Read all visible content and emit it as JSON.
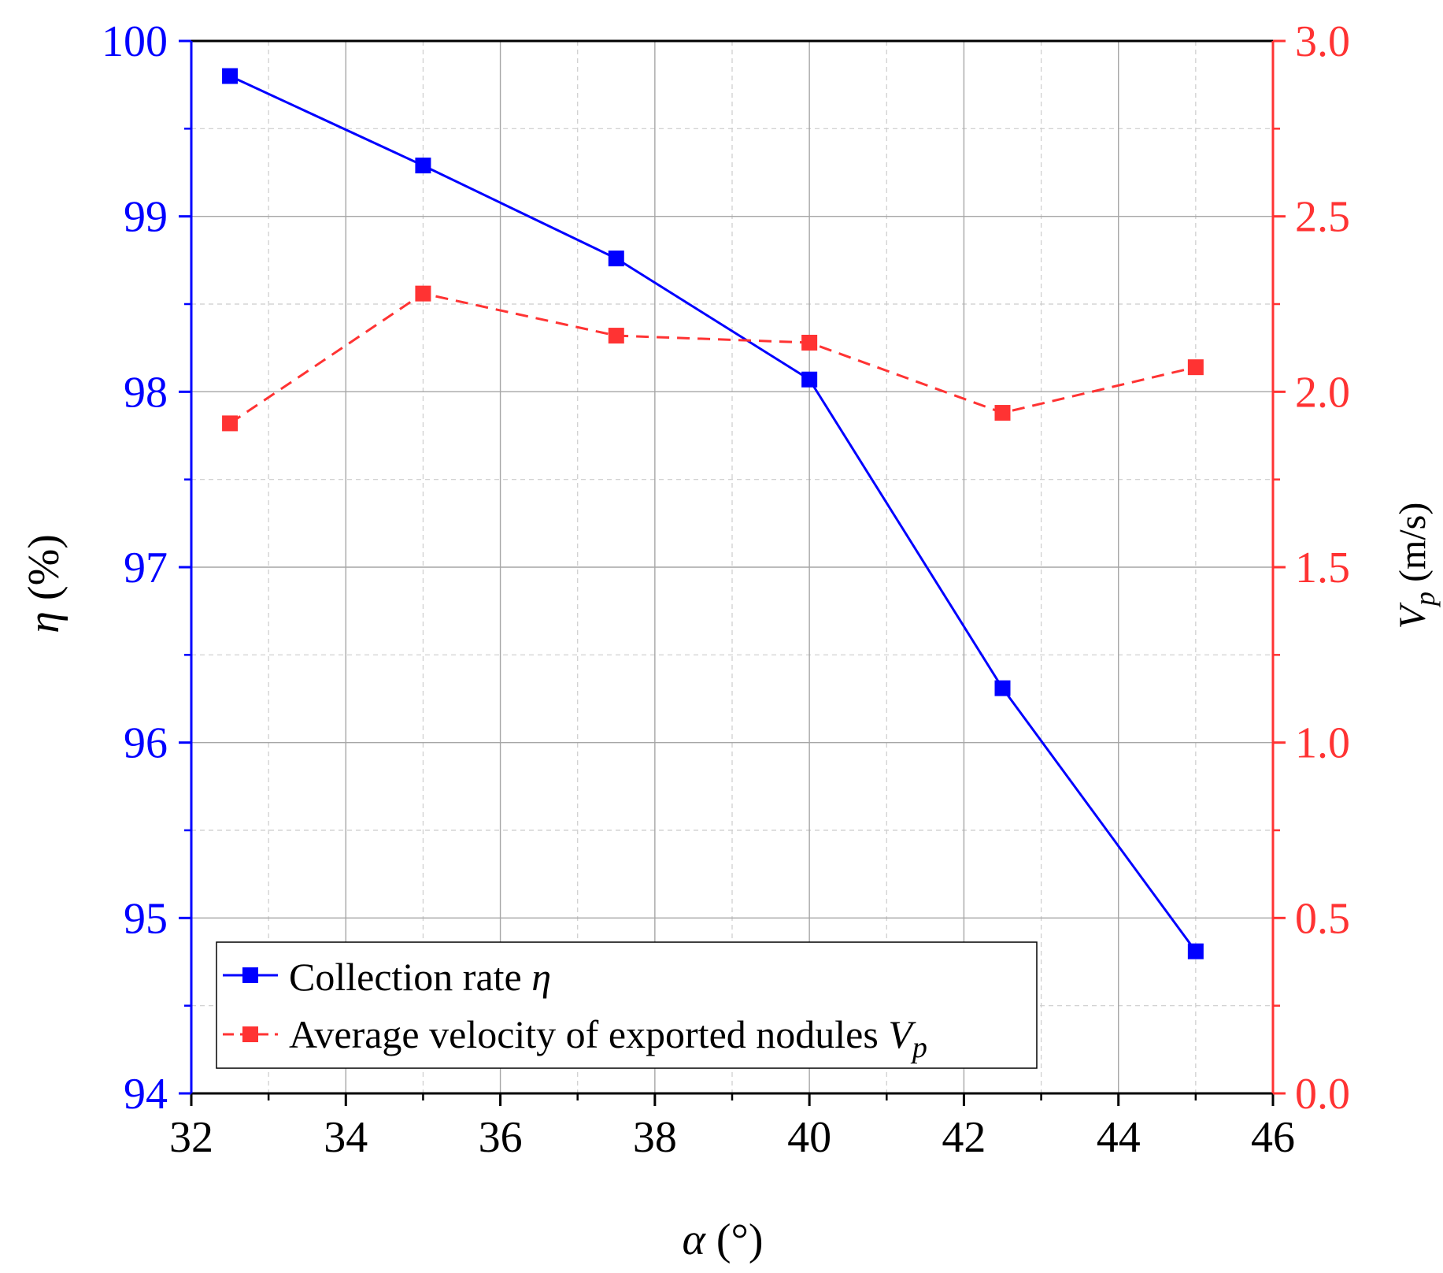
{
  "chart_data": {
    "type": "line",
    "x_axis": {
      "label_symbol": "α",
      "label_unit": " (°)",
      "range": [
        32,
        46
      ],
      "ticks": [
        "32",
        "34",
        "36",
        "38",
        "40",
        "42",
        "44",
        "46"
      ],
      "tick_values": [
        32,
        34,
        36,
        38,
        40,
        42,
        44,
        46
      ]
    },
    "y_left": {
      "label_symbol": "η",
      "label_unit": " (%)",
      "range": [
        94,
        100
      ],
      "ticks": [
        "94",
        "95",
        "96",
        "97",
        "98",
        "99",
        "100"
      ],
      "tick_values": [
        94,
        95,
        96,
        97,
        98,
        99,
        100
      ],
      "color": "#0000ff"
    },
    "y_right": {
      "label_symbol": "V",
      "label_sub": "p",
      "label_unit": " (m/s)",
      "range": [
        0,
        3
      ],
      "ticks": [
        "0.0",
        "0.5",
        "1.0",
        "1.5",
        "2.0",
        "2.5",
        "3.0"
      ],
      "tick_values": [
        0,
        0.5,
        1,
        1.5,
        2,
        2.5,
        3
      ],
      "color": "#ff3333"
    },
    "grid": true,
    "legend_position": "bottom-left",
    "series": [
      {
        "name": "Collection rate η",
        "name_text": "Collection rate ",
        "name_symbol": "η",
        "axis": "left",
        "color": "#0000ff",
        "line_style": "solid",
        "marker": "square",
        "x": [
          32.5,
          35,
          37.5,
          40,
          42.5,
          45
        ],
        "y": [
          99.8,
          99.29,
          98.76,
          98.07,
          96.31,
          94.81
        ]
      },
      {
        "name": "Average velocity of exported nodules Vp",
        "name_text": "Average velocity of exported nodules ",
        "name_symbol": "V",
        "name_sub": "p",
        "axis": "right",
        "color": "#ff3333",
        "line_style": "dashed",
        "marker": "square",
        "x": [
          32.5,
          35,
          37.5,
          40,
          42.5,
          45
        ],
        "y": [
          1.91,
          2.28,
          2.16,
          2.14,
          1.94,
          2.07
        ]
      }
    ]
  }
}
